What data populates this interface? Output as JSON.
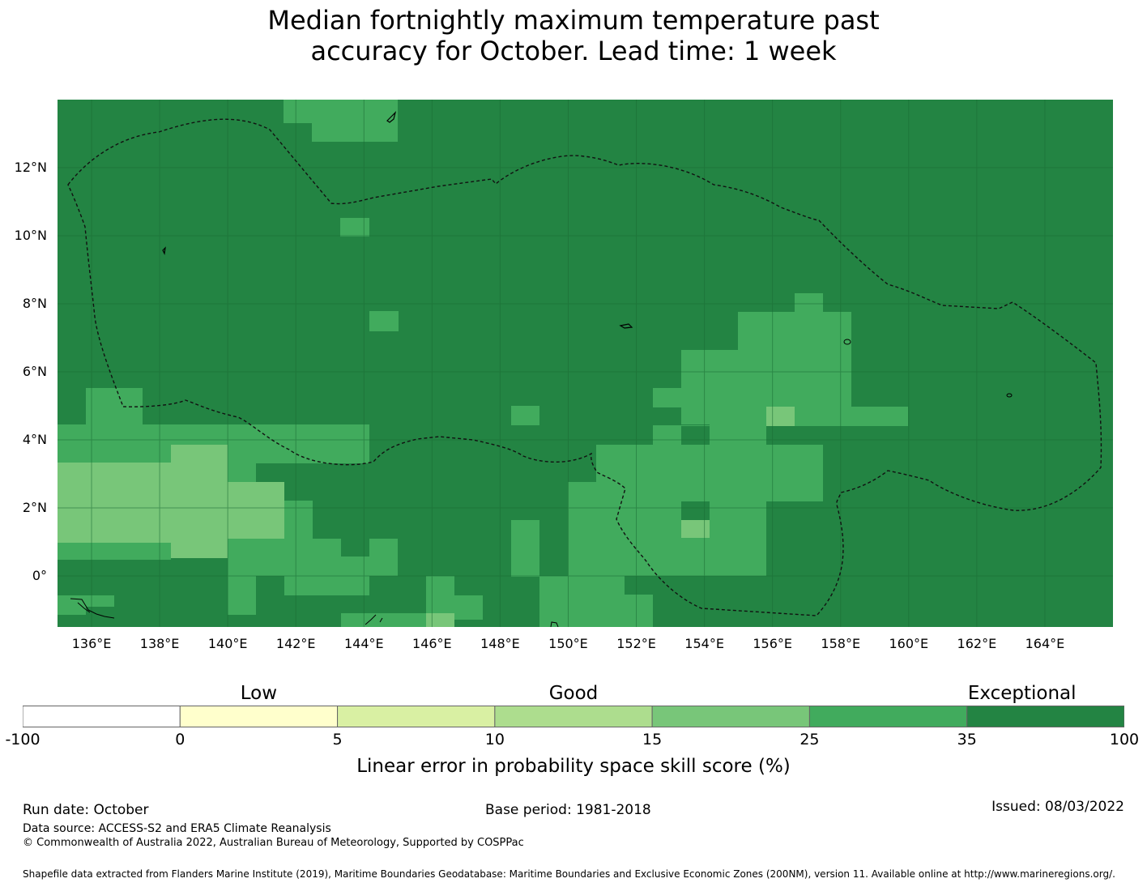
{
  "title_line1": "Median fortnightly maximum temperature past",
  "title_line2": "accuracy for October. Lead time: 1 week",
  "map": {
    "lon_range": [
      135,
      166
    ],
    "lat_range": [
      -1.5,
      14
    ],
    "lon_ticks": [
      "136°E",
      "138°E",
      "140°E",
      "142°E",
      "144°E",
      "146°E",
      "148°E",
      "150°E",
      "152°E",
      "154°E",
      "156°E",
      "158°E",
      "160°E",
      "162°E",
      "164°E"
    ],
    "lat_ticks": [
      "12°N",
      "10°N",
      "8°N",
      "6°N",
      "4°N",
      "2°N",
      "0°"
    ],
    "background_color": "#238443"
  },
  "legend": {
    "category_labels": [
      "Low",
      "Good",
      "Exceptional"
    ],
    "tick_labels": [
      "-100",
      "0",
      "5",
      "10",
      "15",
      "25",
      "35",
      "100"
    ],
    "colors": [
      "#ffffff",
      "#ffffcc",
      "#d9f0a3",
      "#addd8e",
      "#78c679",
      "#41ab5d",
      "#238443"
    ],
    "title": "Linear error in probability space skill score (%)"
  },
  "footer": {
    "run_date": "Run date: October",
    "base_period": "Base period: 1981-2018",
    "issued": "Issued: 08/03/2022",
    "data_source": "Data source: ACCESS-S2 and ERA5 Climate Reanalysis",
    "copyright": "© Commonwealth of Australia 2022, Australian Bureau of Meteorology, Supported by COSPPac",
    "shapefile": "Shapefile data extracted from Flanders Marine Institute (2019), Maritime Boundaries Geodatabase: Maritime Boundaries and Exclusive Economic Zones (200NM), version 11. Available online at http://www.marineregions.org/."
  }
}
